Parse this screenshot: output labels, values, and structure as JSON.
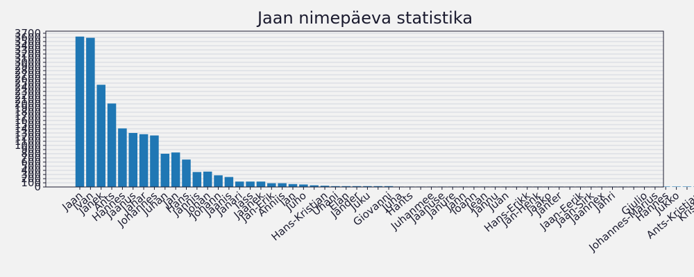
{
  "chart_data": {
    "type": "bar",
    "title": "Jaan nimepäeva statistika",
    "xlabel": "",
    "ylabel": "",
    "ylim": [
      0,
      3750
    ],
    "yticks": [
      0,
      100,
      200,
      300,
      400,
      500,
      600,
      700,
      800,
      900,
      1000,
      1100,
      1200,
      1300,
      1400,
      1500,
      1600,
      1700,
      1800,
      1900,
      2000,
      2100,
      2200,
      2300,
      2400,
      2500,
      2600,
      2700,
      2800,
      2900,
      3000,
      3100,
      3200,
      3300,
      3400,
      3500,
      3600,
      3700
    ],
    "grid": true,
    "bar_color": "#1f77b4",
    "background": "#f2f2f2",
    "grid_color": "#c8ccd6",
    "categories": [
      "Jaan",
      "Ivan",
      "Janek",
      "Ants",
      "Hannes",
      "Jaanus",
      "Jahar",
      "Johannes",
      "Juhan",
      "Jan",
      "Hans",
      "Jannis",
      "Johan",
      "Johann",
      "Jaanis",
      "Janari",
      "Iass",
      "Jaanek",
      "Jan-Erik",
      "Anniis",
      "Ian",
      "Juho",
      "",
      "Hans-Kristjan",
      "Uhani",
      "Elan",
      "Jander",
      "Juku",
      "",
      "Giovanni",
      "Juha",
      "Hants",
      "",
      "Juhanmee",
      "Jaanuse",
      "Janure",
      "Jann",
      "Ioann",
      "Jean",
      "Jannu",
      "Juan",
      "",
      "Hans-Erikk",
      "Jan-Henk",
      "Jaako",
      "Janter",
      "",
      "Jaan-Eerik",
      "Jaan-Sirk",
      "Jaannex",
      "Jahri",
      "",
      "",
      "Giulio",
      "Johannes-Marius",
      "Hannes",
      "Jukko",
      "",
      "Ants-Kristjan",
      "Kristjan"
    ],
    "values": [
      3620,
      3590,
      2460,
      2010,
      1410,
      1300,
      1270,
      1240,
      800,
      830,
      660,
      360,
      370,
      280,
      240,
      130,
      130,
      130,
      90,
      90,
      70,
      60,
      40,
      30,
      20,
      20,
      20,
      20,
      20,
      20,
      10,
      10,
      10,
      10,
      10,
      10,
      10,
      10,
      10,
      10,
      10,
      10,
      10,
      10,
      10,
      10,
      10,
      10,
      10,
      10,
      10,
      10,
      10,
      10,
      10,
      10,
      10,
      10,
      10,
      10
    ]
  }
}
